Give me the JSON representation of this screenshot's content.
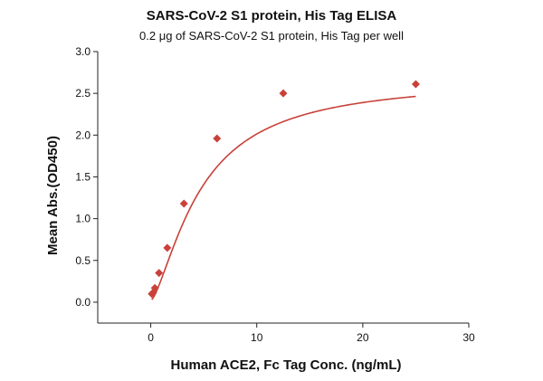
{
  "chart_data": {
    "type": "scatter",
    "title": "SARS-CoV-2 S1 protein, His Tag ELISA",
    "subtitle": "0.2 μg of SARS-CoV-2 S1 protein, His Tag per well",
    "xlabel": "Human ACE2, Fc Tag Conc. (ng/mL)",
    "ylabel": "Mean Abs.(OD450)",
    "xlim": [
      -5,
      30
    ],
    "ylim": [
      -0.25,
      3.0
    ],
    "xticks": [
      0,
      10,
      20,
      30
    ],
    "yticks": [
      0.0,
      0.5,
      1.0,
      1.5,
      2.0,
      2.5,
      3.0
    ],
    "xtick_labels": [
      "0",
      "10",
      "20",
      "30"
    ],
    "ytick_labels": [
      "0.0",
      "0.5",
      "1.0",
      "1.5",
      "2.0",
      "2.5",
      "3.0"
    ],
    "grid": false,
    "legend": "none",
    "marker": "diamond",
    "color": "#c8413a",
    "series": [
      {
        "x": [
          0.1,
          0.2,
          0.39,
          0.78,
          1.56,
          3.13,
          6.25,
          12.5,
          25
        ],
        "y": [
          0.1,
          0.11,
          0.17,
          0.35,
          0.65,
          1.18,
          1.96,
          2.5,
          2.61
        ],
        "fit": "four-parameter logistic"
      }
    ]
  }
}
